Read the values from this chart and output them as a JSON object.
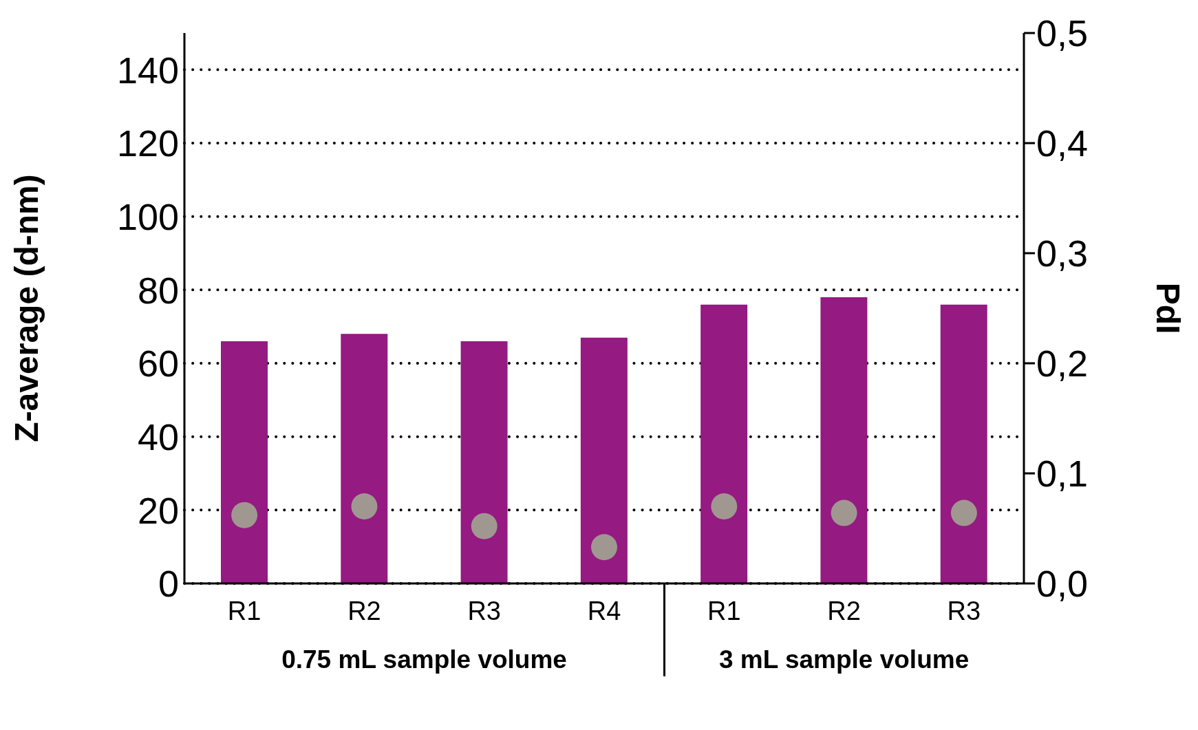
{
  "chart_data": {
    "type": "bar",
    "categories": [
      "R1",
      "R2",
      "R3",
      "R4",
      "R1",
      "R2",
      "R3"
    ],
    "ylabel": "Z-average (d-nm)",
    "y2label": "PdI",
    "series": [
      {
        "color": "#951a81",
        "values": [
          66,
          68,
          66,
          67,
          76,
          78,
          76
        ]
      },
      {
        "type": "scatter",
        "axis": "y2",
        "color": "#a09890",
        "marker": "circle",
        "values": [
          0.062,
          0.07,
          0.052,
          0.033,
          0.07,
          0.064,
          0.064
        ]
      }
    ],
    "ylim": [
      0,
      150
    ],
    "yticks": [
      0,
      20,
      40,
      60,
      80,
      100,
      120,
      140
    ],
    "y2lim": [
      0,
      0.5
    ],
    "y2ticks": [
      {
        "value": 0,
        "label": "0,0"
      },
      {
        "value": 0.1,
        "label": "0,1"
      },
      {
        "value": 0.2,
        "label": "0,2"
      },
      {
        "value": 0.3,
        "label": "0,3"
      },
      {
        "value": 0.4,
        "label": "0,4"
      },
      {
        "value": 0.5,
        "label": "0,5"
      }
    ],
    "grid": "y",
    "legend": false,
    "annotations": [
      "0.75 mL sample volume",
      "3 mL sample volume"
    ]
  }
}
